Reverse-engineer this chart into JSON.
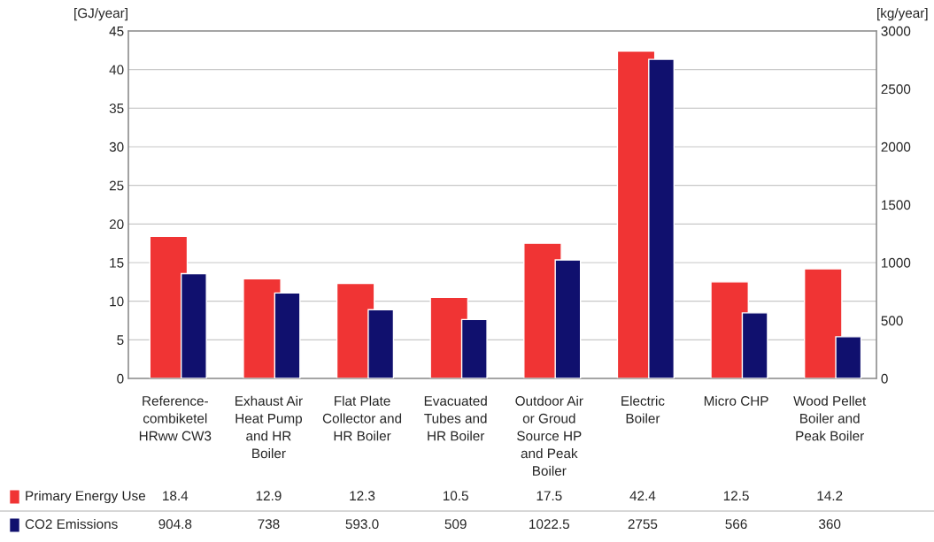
{
  "chart_data": {
    "type": "bar",
    "categories": [
      "Reference-\ncombiketel\nHRww CW3",
      "Exhaust Air\nHeat Pump\nand HR\nBoiler",
      "Flat Plate\nCollector and\nHR Boiler",
      "Evacuated\nTubes and\nHR Boiler",
      "Outdoor Air\nor Groud\nSource HP\nand Peak\nBoiler",
      "Electric\nBoiler",
      "Micro CHP",
      "Wood Pellet\nBoiler and\nPeak Boiler"
    ],
    "series": [
      {
        "name": "Primary Energy Use",
        "color": "#f03434",
        "values": [
          18.4,
          12.9,
          12.3,
          10.5,
          17.5,
          42.4,
          12.5,
          14.2
        ],
        "value_labels": [
          "18.4",
          "12.9",
          "12.3",
          "10.5",
          "17.5",
          "42.4",
          "12.5",
          "14.2"
        ]
      },
      {
        "name": "CO2 Emissions",
        "color": "#10106e",
        "axis": "y2",
        "values": [
          904.8,
          738,
          593.0,
          509,
          1022.5,
          2755,
          566,
          360
        ],
        "value_labels": [
          "904.8",
          "738",
          "593.0",
          "509",
          "1022.5",
          "2755",
          "566",
          "360"
        ]
      }
    ],
    "ylabel": "[GJ/year]",
    "y2label": "[kg/year]",
    "ylim": [
      0,
      45
    ],
    "yticks": [
      0,
      5,
      10,
      15,
      20,
      25,
      30,
      35,
      40,
      45
    ],
    "y2lim": [
      0,
      3000
    ],
    "y2ticks": [
      0,
      500,
      1000,
      1500,
      2000,
      2500,
      3000
    ],
    "grid": "y",
    "legend": "bottom"
  }
}
